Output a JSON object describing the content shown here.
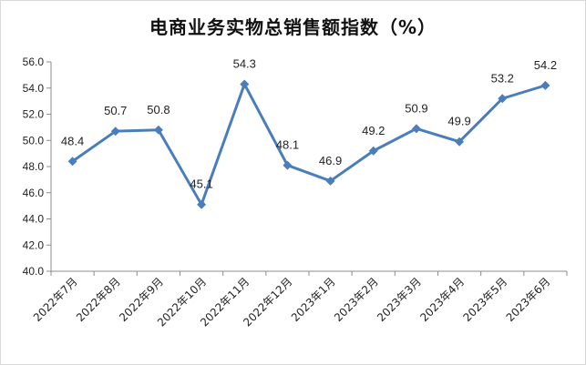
{
  "chart_data": {
    "type": "line",
    "title": "电商业务实物总销售额指数（%）",
    "categories": [
      "2022年7月",
      "2022年8月",
      "2022年9月",
      "2022年10月",
      "2022年11月",
      "2022年12月",
      "2023年1月",
      "2023年2月",
      "2023年3月",
      "2023年4月",
      "2023年5月",
      "2023年6月"
    ],
    "values": [
      48.4,
      50.7,
      50.8,
      45.1,
      54.3,
      48.1,
      46.9,
      49.2,
      50.9,
      49.9,
      53.2,
      54.2
    ],
    "ylim": [
      40.0,
      56.0
    ],
    "yticks": [
      "40.0",
      "42.0",
      "44.0",
      "46.0",
      "48.0",
      "50.0",
      "52.0",
      "54.0",
      "56.0"
    ],
    "grid": false,
    "line_color": "#4a7ebb"
  }
}
